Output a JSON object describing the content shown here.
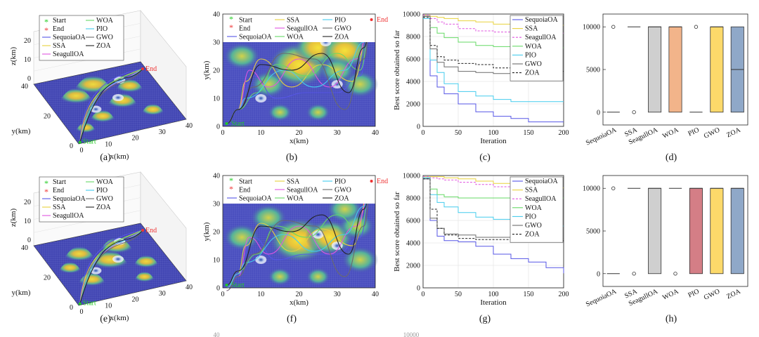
{
  "figure": {
    "panel_labels": [
      "(a)",
      "(b)",
      "(c)",
      "(d)",
      "(e)",
      "(f)",
      "(g)",
      "(h)"
    ],
    "start_label": "Start",
    "end_label": "End"
  },
  "algorithms": [
    "SequoiaOA",
    "SSA",
    "SeagullOA",
    "WOA",
    "PIO",
    "GWO",
    "ZOA"
  ],
  "colors": {
    "SequoiaOA": "#5656e6",
    "SSA": "#e8d23c",
    "SeagullOA": "#e055e0",
    "WOA": "#66d966",
    "PIO": "#44ccee",
    "GWO": "#6b6b6b",
    "ZOA": "#222222",
    "start": "#22cc22",
    "end": "#ee3333",
    "axes": "#222222",
    "grid": "#e6e6e6",
    "box_fill": [
      "#8fa8c8",
      "#f7c6a6",
      "#cfcfcf",
      "#f2b48a",
      "#d47e86",
      "#fcd96a"
    ]
  },
  "chart_data": [
    {
      "panel": "(a)",
      "type": "surface-3d",
      "title": "",
      "xlabel": "x(km)",
      "ylabel": "y(km)",
      "zlabel": "z(km)",
      "xticks": [
        "0",
        "10",
        "20",
        "30",
        "40"
      ],
      "yticks": [
        "0",
        "20",
        "40"
      ],
      "zticks": [
        "0",
        "10",
        "20"
      ],
      "legend": [
        "Start",
        "End",
        "SequoiaOA",
        "SSA",
        "SeagullOA",
        "WOA",
        "PIO",
        "GWO",
        "ZOA"
      ],
      "annotations": [
        "Start",
        "End"
      ]
    },
    {
      "panel": "(b)",
      "type": "contour-path",
      "xlabel": "x(km)",
      "ylabel": "y(km)",
      "xlim": [
        0,
        40
      ],
      "ylim": [
        0,
        40
      ],
      "xticks": [
        "0",
        "10",
        "20",
        "30",
        "40"
      ],
      "yticks": [
        "0",
        "10",
        "20",
        "30",
        "40"
      ],
      "legend": [
        "Start",
        "End",
        "SequoiaOA",
        "SSA",
        "SeagullOA",
        "WOA",
        "PIO",
        "GWO",
        "ZOA"
      ],
      "annotations": [
        "Start",
        "End"
      ]
    },
    {
      "panel": "(c)",
      "type": "line",
      "xlabel": "Iteration",
      "ylabel": "Best score obtained so far",
      "xlim": [
        0,
        200
      ],
      "ylim": [
        0,
        10000
      ],
      "xticks": [
        "0",
        "50",
        "100",
        "150",
        "200"
      ],
      "yticks": [
        "0",
        "2000",
        "4000",
        "6000",
        "8000",
        "10000"
      ],
      "x": [
        0,
        10,
        20,
        30,
        50,
        75,
        100,
        125,
        150,
        175,
        200
      ],
      "series": [
        {
          "name": "SequoiaOA",
          "values": [
            9800,
            4500,
            3500,
            2900,
            2000,
            1300,
            900,
            700,
            400,
            400,
            400
          ]
        },
        {
          "name": "SSA",
          "values": [
            9900,
            9800,
            9700,
            9600,
            9400,
            9300,
            9100,
            9000,
            9000,
            9000,
            9000
          ]
        },
        {
          "name": "SeagullOA",
          "values": [
            9900,
            9600,
            9300,
            9100,
            8700,
            8500,
            8400,
            8300,
            8300,
            8300,
            8300
          ]
        },
        {
          "name": "WOA",
          "values": [
            9800,
            8800,
            8300,
            7900,
            7500,
            7200,
            7100,
            7000,
            7000,
            7000,
            7000
          ]
        },
        {
          "name": "PIO",
          "values": [
            9600,
            5900,
            4800,
            3800,
            3100,
            2700,
            2400,
            2200,
            2200,
            2200,
            2200
          ]
        },
        {
          "name": "GWO",
          "values": [
            9800,
            6900,
            5700,
            5300,
            4900,
            4800,
            4700,
            4400,
            4200,
            4200,
            4200
          ]
        },
        {
          "name": "ZOA",
          "values": [
            9700,
            7200,
            6200,
            5900,
            5600,
            5500,
            5200,
            5000,
            4900,
            4900,
            4900
          ]
        }
      ]
    },
    {
      "panel": "(d)",
      "type": "box",
      "ylim": [
        -1500,
        11500
      ],
      "yticks": [
        "0",
        "5000",
        "10000"
      ],
      "categories": [
        "SequoiaOA",
        "SSA",
        "SeagullOA",
        "WOA",
        "PIO",
        "GWO",
        "ZOA"
      ],
      "boxes": [
        {
          "name": "SequoiaOA",
          "q1": 0,
          "median": 0,
          "q3": 0,
          "outliers": [
            10000
          ]
        },
        {
          "name": "SSA",
          "q1": 10000,
          "median": 10000,
          "q3": 10000,
          "outliers": [
            0
          ]
        },
        {
          "name": "SeagullOA",
          "q1": 0,
          "median": 10000,
          "q3": 10000,
          "outliers": []
        },
        {
          "name": "WOA",
          "q1": 0,
          "median": 10000,
          "q3": 10000,
          "outliers": []
        },
        {
          "name": "PIO",
          "q1": 0,
          "median": 0,
          "q3": 0,
          "outliers": [
            10000
          ]
        },
        {
          "name": "GWO",
          "q1": 0,
          "median": 10000,
          "q3": 10000,
          "outliers": []
        },
        {
          "name": "ZOA",
          "q1": 0,
          "median": 5000,
          "q3": 10000,
          "outliers": []
        }
      ]
    },
    {
      "panel": "(e)",
      "type": "surface-3d",
      "xlabel": "x(km)",
      "ylabel": "y(km)",
      "zlabel": "z(km)",
      "xticks": [
        "0",
        "10",
        "20",
        "30",
        "40"
      ],
      "yticks": [
        "0",
        "20",
        "40"
      ],
      "zticks": [
        "0",
        "10",
        "20"
      ],
      "legend": [
        "Start",
        "End",
        "SequoiaOA",
        "SSA",
        "SeagullOA",
        "WOA",
        "PIO",
        "GWO",
        "ZOA"
      ],
      "annotations": [
        "Start",
        "End"
      ]
    },
    {
      "panel": "(f)",
      "type": "contour-path",
      "xlabel": "x(km)",
      "ylabel": "y(km)",
      "xlim": [
        0,
        40
      ],
      "ylim": [
        0,
        40
      ],
      "xticks": [
        "0",
        "10",
        "20",
        "30",
        "40"
      ],
      "yticks": [
        "0",
        "10",
        "20",
        "30",
        "40"
      ],
      "legend": [
        "Start",
        "End",
        "SequoiaOA",
        "SSA",
        "SeagullOA",
        "WOA",
        "PIO",
        "GWO",
        "ZOA"
      ],
      "annotations": [
        "Start",
        "End"
      ]
    },
    {
      "panel": "(g)",
      "type": "line",
      "xlabel": "Iteration",
      "ylabel": "Best score obtained so far",
      "xlim": [
        0,
        200
      ],
      "ylim": [
        0,
        10000
      ],
      "xticks": [
        "0",
        "50",
        "100",
        "150",
        "200"
      ],
      "yticks": [
        "0",
        "2000",
        "4000",
        "6000",
        "8000",
        "10000"
      ],
      "x": [
        0,
        10,
        20,
        30,
        50,
        75,
        100,
        125,
        150,
        175,
        200
      ],
      "series": [
        {
          "name": "SequoiaOA",
          "values": [
            9700,
            6000,
            4600,
            4200,
            4100,
            3700,
            3000,
            2600,
            2300,
            1800,
            1300
          ]
        },
        {
          "name": "SSA",
          "values": [
            9900,
            9900,
            9900,
            9800,
            9700,
            9500,
            9300,
            9100,
            9000,
            8900,
            8900
          ]
        },
        {
          "name": "SeagullOA",
          "values": [
            9900,
            9800,
            9700,
            9600,
            9400,
            9200,
            9000,
            8800,
            8700,
            8700,
            8700
          ]
        },
        {
          "name": "WOA",
          "values": [
            9800,
            8800,
            8300,
            8100,
            8000,
            8000,
            8000,
            8000,
            8000,
            8000,
            8000
          ]
        },
        {
          "name": "PIO",
          "values": [
            9800,
            8300,
            7600,
            7200,
            6700,
            6300,
            6100,
            5800,
            5500,
            5500,
            5500
          ]
        },
        {
          "name": "GWO",
          "values": [
            9700,
            6200,
            5300,
            4800,
            4700,
            4500,
            4500,
            4500,
            4400,
            4400,
            4400
          ]
        },
        {
          "name": "ZOA",
          "values": [
            9700,
            7000,
            5300,
            4700,
            4400,
            4300,
            4300,
            4200,
            4200,
            4200,
            4200
          ]
        }
      ]
    },
    {
      "panel": "(h)",
      "type": "box",
      "ylim": [
        -1500,
        11500
      ],
      "yticks": [
        "0",
        "5000",
        "10000"
      ],
      "categories": [
        "SequoiaOA",
        "SSA",
        "SeagullOA",
        "WOA",
        "PIO",
        "GWO",
        "ZOA"
      ],
      "boxes": [
        {
          "name": "SequoiaOA",
          "q1": 0,
          "median": 0,
          "q3": 0,
          "outliers": [
            10000
          ]
        },
        {
          "name": "SSA",
          "q1": 10000,
          "median": 10000,
          "q3": 10000,
          "outliers": [
            0
          ]
        },
        {
          "name": "SeagullOA",
          "q1": 0,
          "median": 10000,
          "q3": 10000,
          "outliers": []
        },
        {
          "name": "WOA",
          "q1": 10000,
          "median": 10000,
          "q3": 10000,
          "outliers": [
            0
          ]
        },
        {
          "name": "PIO",
          "q1": 0,
          "median": 10000,
          "q3": 10000,
          "outliers": []
        },
        {
          "name": "GWO",
          "q1": 0,
          "median": 10000,
          "q3": 10000,
          "outliers": []
        },
        {
          "name": "ZOA",
          "q1": 0,
          "median": 10000,
          "q3": 10000,
          "outliers": []
        }
      ]
    }
  ],
  "bottom_fragments": {
    "ytick_40": "40",
    "ytick_10000": "10000"
  }
}
